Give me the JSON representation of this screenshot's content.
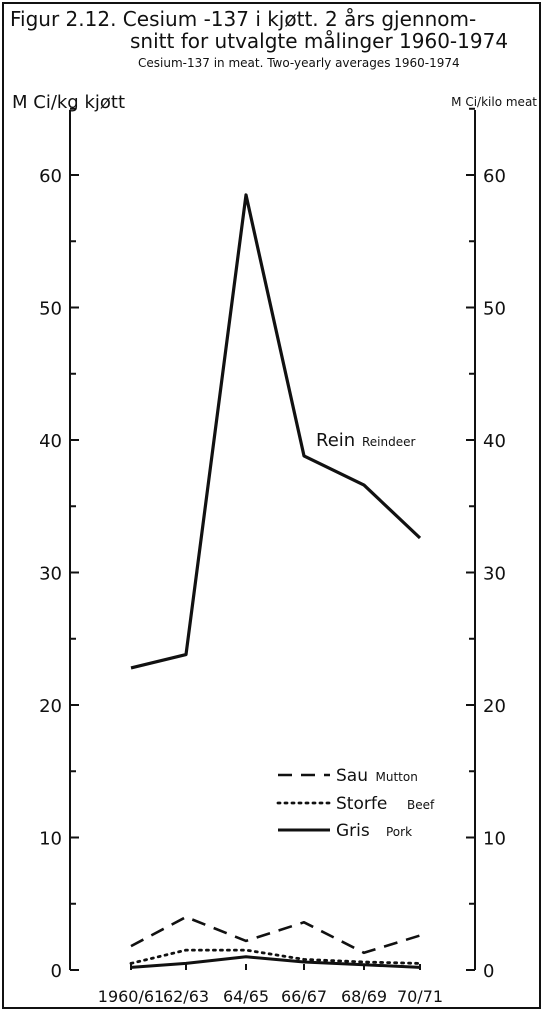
{
  "title": {
    "line1": "Figur 2.12. Cesium -137 i kjøtt. 2 års gjennom-",
    "line2": "snitt for utvalgte målinger 1960-1974",
    "english": "Cesium-137 in meat. Two-yearly averages 1960-1974"
  },
  "chart_data": {
    "type": "line",
    "ylabel_left": "M Ci/kg kjøtt",
    "ylabel_right": "M Ci/kilo meat",
    "ylim": [
      0,
      65
    ],
    "yticks": [
      0,
      10,
      20,
      30,
      40,
      50,
      60
    ],
    "categories": [
      "1960/61",
      "62/63",
      "64/65",
      "66/67",
      "68/69",
      "70/71"
    ],
    "series": [
      {
        "name": "Rein",
        "name_en": "Reindeer",
        "style": "solid-bold",
        "values": [
          22.8,
          23.8,
          58.5,
          38.8,
          36.6,
          32.6
        ]
      },
      {
        "name": "Sau",
        "name_en": "Mutton",
        "style": "dashed",
        "values": [
          1.8,
          4.0,
          2.2,
          3.6,
          1.3,
          2.6
        ]
      },
      {
        "name": "Storfe",
        "name_en": "Beef",
        "style": "dotted",
        "values": [
          0.5,
          1.5,
          1.5,
          0.8,
          0.6,
          0.5
        ]
      },
      {
        "name": "Gris",
        "name_en": "Pork",
        "style": "solid",
        "values": [
          0.2,
          0.5,
          1.0,
          0.6,
          0.4,
          0.2
        ]
      }
    ]
  }
}
